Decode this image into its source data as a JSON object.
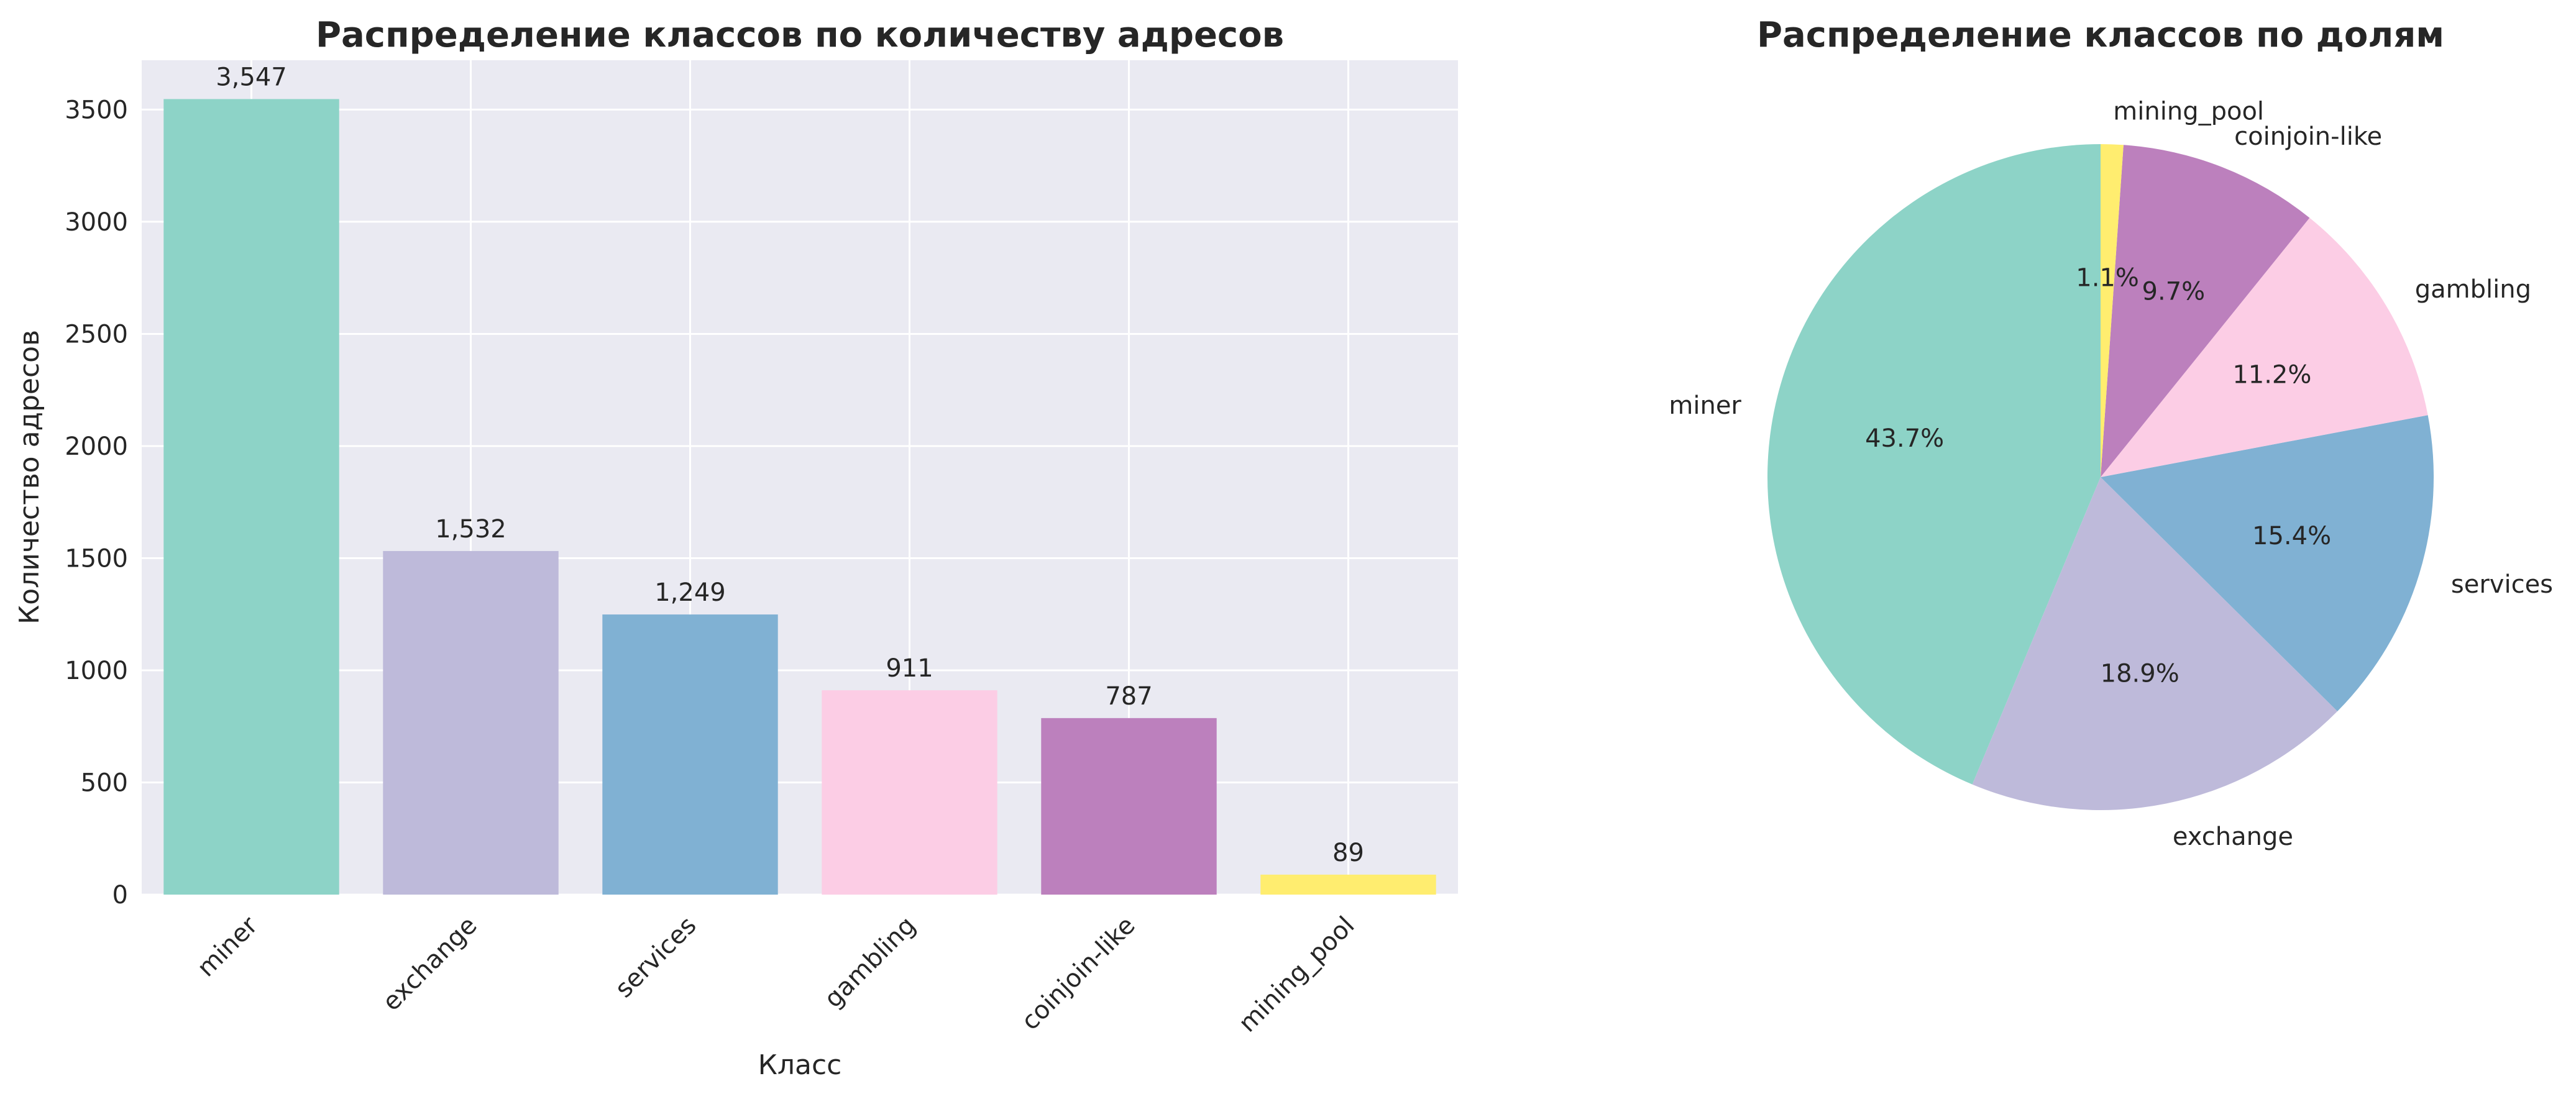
{
  "colors": {
    "axes_bg": "#EAEAF2",
    "grid": "#FFFFFF",
    "text": "#262626"
  },
  "chart_data": [
    {
      "type": "bar",
      "title": "Распределение классов по количеству адресов",
      "xlabel": "Класс",
      "ylabel": "Количество адресов",
      "categories": [
        "miner",
        "exchange",
        "services",
        "gambling",
        "coinjoin-like",
        "mining_pool"
      ],
      "values": [
        3547,
        1532,
        1249,
        911,
        787,
        89
      ],
      "value_labels": [
        "3,547",
        "1,532",
        "1,249",
        "911",
        "787",
        "89"
      ],
      "colors": [
        "#8DD3C7",
        "#BEBADA",
        "#80B1D3",
        "#FCCDE5",
        "#BC80BD",
        "#FFED6F"
      ],
      "ylim": [
        0,
        3720
      ],
      "yticks": [
        0,
        500,
        1000,
        1500,
        2000,
        2500,
        3000,
        3500
      ],
      "grid": true
    },
    {
      "type": "pie",
      "title": "Распределение классов по долям",
      "labels": [
        "miner",
        "exchange",
        "services",
        "gambling",
        "coinjoin-like",
        "mining_pool"
      ],
      "values": [
        3547,
        1532,
        1249,
        911,
        787,
        89
      ],
      "percent_labels": [
        "43.7%",
        "18.9%",
        "15.4%",
        "11.2%",
        "9.7%",
        "1.1%"
      ],
      "colors": [
        "#8DD3C7",
        "#BEBADA",
        "#80B1D3",
        "#FCCDE5",
        "#BC80BD",
        "#FFED6F"
      ],
      "start_angle_deg": 90,
      "direction": "counterclockwise"
    }
  ]
}
